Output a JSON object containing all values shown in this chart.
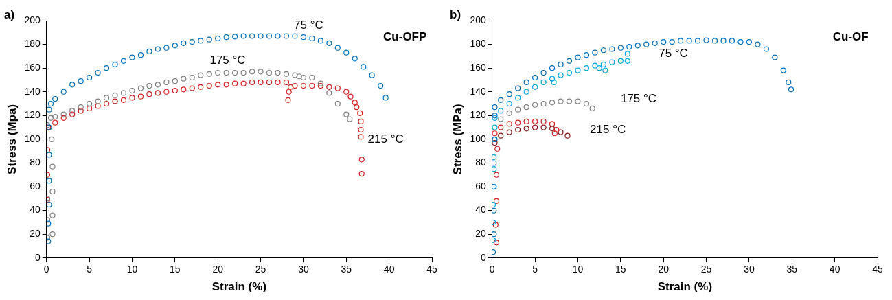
{
  "chart_data": [
    {
      "type": "scatter",
      "title": "a)",
      "xlabel": "Strain (%)",
      "ylabel": "Stress (Mpa)",
      "marker": "circle",
      "grid": false,
      "legend": false,
      "xlim": [
        0,
        45
      ],
      "xticks": [
        0,
        5,
        10,
        15,
        20,
        25,
        30,
        35,
        40,
        45
      ],
      "ylim": [
        0,
        200
      ],
      "yticks": [
        0,
        20,
        40,
        60,
        80,
        100,
        120,
        140,
        160,
        180,
        200
      ],
      "annotations": [
        "Cu-OFP",
        "75 °C",
        "175 °C",
        "215 °C"
      ],
      "series": [
        {
          "color": "#0070c0",
          "x": [
            0.2,
            0.2,
            0.3,
            0.3,
            0.3,
            0.3,
            0.3,
            0.5,
            1,
            2,
            3,
            4,
            5,
            6,
            7,
            8,
            9,
            10,
            11,
            12,
            13,
            14,
            15,
            16,
            17,
            18,
            19,
            20,
            21,
            22,
            23,
            24,
            25,
            26,
            27,
            28,
            29,
            30,
            31,
            32,
            33,
            34,
            35,
            36,
            37,
            38,
            39,
            39.6
          ],
          "values": [
            14,
            29,
            45,
            65,
            87,
            110,
            125,
            130,
            134,
            140,
            146,
            149,
            152,
            156,
            160,
            163,
            166,
            169,
            171,
            174,
            176,
            177,
            179,
            181,
            182,
            183,
            184,
            185,
            186,
            186.5,
            187,
            187,
            187,
            187,
            187,
            187,
            187,
            186,
            185,
            183,
            181,
            177,
            173,
            168,
            161,
            154,
            145,
            135
          ]
        },
        {
          "color": "#808080",
          "x": [
            0.1,
            0.7,
            0.1,
            0.7,
            0.1,
            0.7,
            0.7,
            0.6,
            0.1,
            0.5,
            1,
            2,
            3,
            4,
            5,
            6,
            7,
            8,
            9,
            10,
            11,
            12,
            13,
            14,
            15,
            16,
            17,
            18,
            19,
            20,
            21,
            22,
            23,
            24,
            25,
            26,
            27,
            28,
            29,
            29.5,
            30,
            31,
            32,
            33,
            34,
            35,
            35.4
          ],
          "values": [
            17,
            20,
            32,
            36,
            50,
            56,
            77,
            100,
            112,
            118,
            119,
            121,
            124,
            127,
            130,
            132,
            135,
            137,
            139,
            141,
            143,
            145,
            146,
            148,
            149,
            151,
            152,
            154,
            155,
            156,
            156,
            156,
            156,
            157,
            157,
            156,
            156,
            155,
            154,
            153,
            152,
            152,
            147,
            139,
            130,
            121,
            117
          ]
        },
        {
          "color": "#d42020",
          "x": [
            0.1,
            0.1,
            0.1,
            0.2,
            1,
            2,
            3,
            4,
            5,
            6,
            7,
            8,
            9,
            10,
            11,
            12,
            13,
            14,
            15,
            16,
            17,
            18,
            19,
            20,
            21,
            22,
            23,
            24,
            25,
            26,
            27,
            28,
            28.2,
            28.3,
            28.5,
            29,
            30,
            31,
            32,
            33,
            34,
            35,
            35.5,
            36,
            36.2,
            36.6,
            36.7,
            36.7,
            36.7,
            36.8,
            36.8
          ],
          "values": [
            49,
            70,
            91,
            110,
            114,
            118,
            121,
            124,
            126,
            128,
            130,
            132,
            133,
            135,
            136,
            138,
            139,
            140,
            141,
            142,
            143,
            144,
            145,
            146,
            146,
            147,
            147,
            148,
            148,
            148,
            148,
            148,
            133,
            140,
            144,
            145,
            145,
            145,
            145,
            144,
            143,
            140,
            136,
            131,
            127,
            122,
            115,
            108,
            102,
            83,
            71
          ]
        }
      ]
    },
    {
      "type": "scatter",
      "title": "b)",
      "xlabel": "Strain (%)",
      "ylabel": "Stress (MPa)",
      "marker": "circle",
      "grid": false,
      "legend": false,
      "xlim": [
        0,
        45
      ],
      "xticks": [
        0,
        5,
        10,
        15,
        20,
        25,
        30,
        35,
        40,
        45
      ],
      "ylim": [
        0,
        200
      ],
      "yticks": [
        0,
        20,
        40,
        60,
        80,
        100,
        120,
        140,
        160,
        180,
        200
      ],
      "annotations": [
        "Cu-OF",
        "75 °C",
        "175 °C",
        "215 °C"
      ],
      "series": [
        {
          "color": "#0070c0",
          "x": [
            0.1,
            0.2,
            0.2,
            0.2,
            0.2,
            0.3,
            0.3,
            0.3,
            1,
            2,
            3,
            4,
            5,
            6,
            7,
            8,
            9,
            10,
            11,
            12,
            13,
            14,
            15,
            16,
            17,
            18,
            19,
            20,
            21,
            22,
            23,
            24,
            25,
            26,
            27,
            28,
            29,
            30,
            31,
            32,
            33,
            34,
            34.6,
            34.9
          ],
          "values": [
            5,
            20,
            40,
            60,
            80,
            100,
            120,
            127,
            133,
            138,
            143,
            148,
            152,
            156,
            160,
            163,
            166,
            169,
            171,
            173,
            175,
            176,
            177,
            178,
            179,
            180,
            181,
            182,
            182,
            183,
            183,
            183,
            183.5,
            183,
            183,
            183,
            182,
            182,
            180,
            176,
            169,
            158,
            148,
            142
          ]
        },
        {
          "color": "#00a6de",
          "x": [
            0.1,
            0.1,
            0.1,
            0.2,
            0.2,
            0.2,
            0.2,
            0.3,
            0.3,
            1,
            2,
            3,
            4,
            5,
            6,
            7,
            7.2,
            8,
            9,
            10,
            11,
            12,
            12.5,
            13,
            13.2,
            14,
            15,
            15.8,
            15.8
          ],
          "values": [
            15,
            30,
            45,
            60,
            75,
            85,
            100,
            110,
            118,
            124,
            130,
            135,
            140,
            144,
            148,
            151,
            148,
            154,
            156,
            158,
            160,
            162,
            160,
            163,
            158,
            165,
            166,
            166,
            172
          ]
        },
        {
          "color": "#808080",
          "x": [
            1,
            2,
            3,
            4,
            5,
            6,
            7,
            8,
            9,
            10,
            11,
            11.7
          ],
          "values": [
            117,
            122,
            125,
            127,
            129,
            130,
            131,
            132,
            132,
            132,
            130,
            126
          ]
        },
        {
          "color": "#d42020",
          "x": [
            0.5,
            0.4,
            0.5,
            0.5,
            0.6,
            0.3,
            1,
            2,
            3,
            4,
            5,
            6,
            7,
            7.5,
            7.3
          ],
          "values": [
            13,
            28,
            48,
            70,
            92,
            105,
            110,
            113,
            114,
            115,
            115,
            115,
            113,
            108,
            105
          ]
        },
        {
          "color": "#8b1a1a",
          "x": [
            0.3,
            1,
            2,
            3,
            4,
            5,
            6,
            7,
            8,
            8.8
          ],
          "values": [
            97,
            103,
            106,
            108,
            109,
            110,
            110,
            109,
            106,
            103
          ]
        }
      ]
    }
  ]
}
